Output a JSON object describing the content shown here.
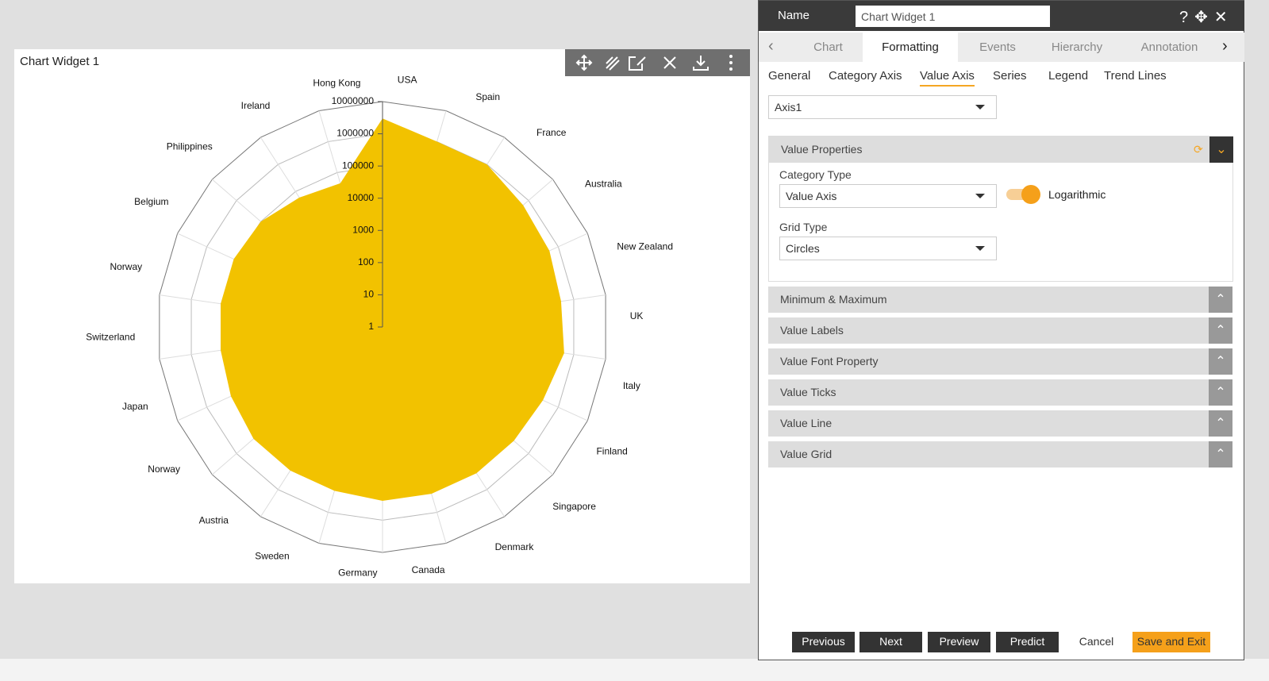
{
  "widget": {
    "title": "Chart Widget 1",
    "chart_data": {
      "type": "radar",
      "log": true,
      "grid": true,
      "color": "#f2c200",
      "categories": [
        "USA",
        "Spain",
        "France",
        "Australia",
        "New Zealand",
        "UK",
        "Italy",
        "Finland",
        "Singapore",
        "Denmark",
        "Canada",
        "Germany",
        "Sweden",
        "Austria",
        "Norway",
        "Japan",
        "Switzerland",
        "Norway",
        "Belgium",
        "Philippines",
        "Ireland",
        "Hong Kong"
      ],
      "values": [
        3000000,
        1000000,
        1000000,
        600000,
        500000,
        400000,
        500000,
        300000,
        250000,
        250000,
        250000,
        250000,
        200000,
        200000,
        200000,
        150000,
        120000,
        120000,
        120000,
        100000,
        60000,
        45000
      ],
      "ylim": [
        1,
        10000000
      ],
      "yticks": [
        1,
        10,
        100,
        1000,
        10000,
        100000,
        1000000,
        10000000
      ]
    }
  },
  "panel": {
    "name_label": "Name",
    "name_value": "Chart Widget 1",
    "tabs": [
      "Chart",
      "Formatting",
      "Events",
      "Hierarchy",
      "Annotation"
    ],
    "subtabs": [
      "General",
      "Category Axis",
      "Value Axis",
      "Series",
      "Legend",
      "Trend Lines"
    ],
    "axis_select": "Axis1",
    "value_properties": {
      "title": "Value Properties",
      "category_type_label": "Category Type",
      "category_type": "Value Axis",
      "toggle": "Logarithmic",
      "grid_type_label": "Grid Type",
      "grid_type": "Circles"
    },
    "sections": [
      "Minimum & Maximum",
      "Value Labels",
      "Value Font Property",
      "Value Ticks",
      "Value Line",
      "Value Grid"
    ],
    "buttons": [
      "Previous",
      "Next",
      "Preview",
      "Predict",
      "Cancel",
      "Save and Exit"
    ]
  }
}
